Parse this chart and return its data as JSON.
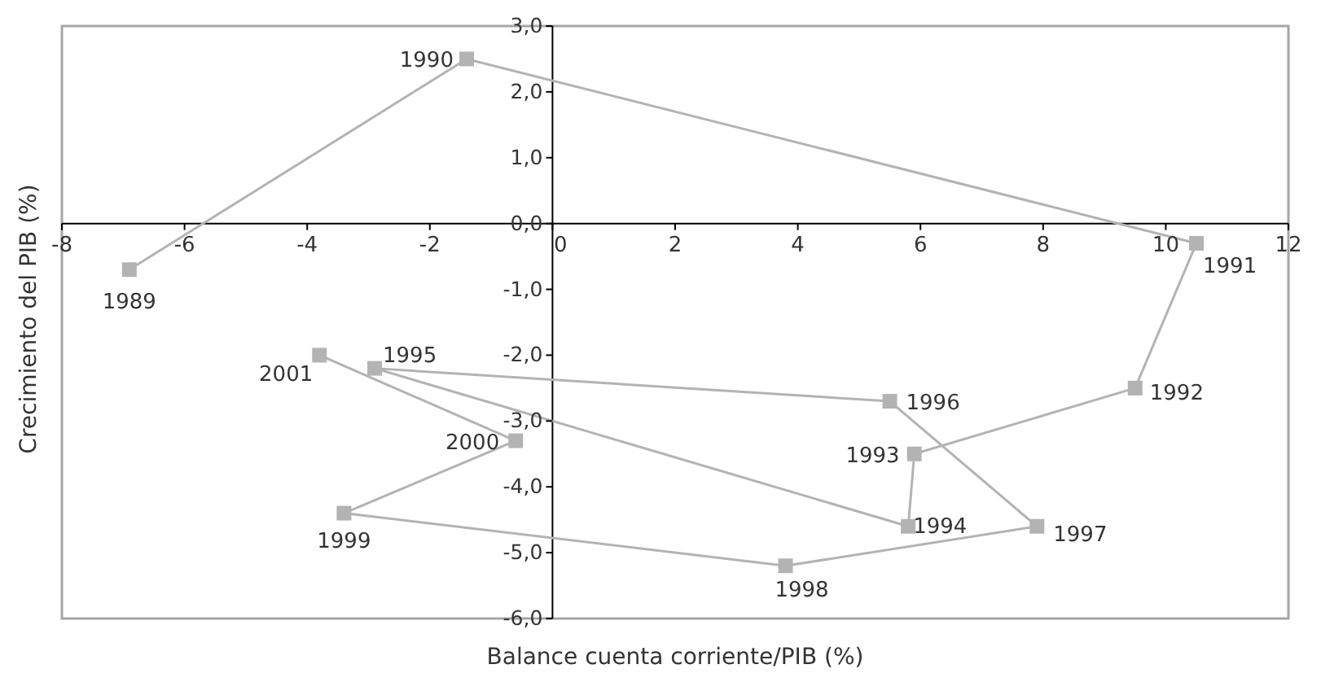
{
  "chart_data": {
    "type": "line",
    "xlabel": "Balance cuenta corriente/PIB (%)",
    "ylabel": "Crecimiento del PIB (%)",
    "series": [
      {
        "color": "#b3b3b3",
        "marker": "square",
        "x": [
          -6.9,
          -1.4,
          10.5,
          9.5,
          5.9,
          5.8,
          -2.9,
          5.5,
          7.9,
          3.8,
          -3.4,
          -0.6,
          -3.8
        ],
        "values": [
          -0.7,
          2.5,
          -0.3,
          -2.5,
          -3.5,
          -4.6,
          -2.2,
          -2.7,
          -4.6,
          -5.2,
          -4.4,
          -3.3,
          -2.0
        ]
      }
    ],
    "annotations": [
      {
        "text": "1989",
        "x": -6.9,
        "y": -0.7
      },
      {
        "text": "1990",
        "x": -1.4,
        "y": 2.5
      },
      {
        "text": "1991",
        "x": 10.5,
        "y": -0.3
      },
      {
        "text": "1992",
        "x": 9.5,
        "y": -2.5
      },
      {
        "text": "1993",
        "x": 5.9,
        "y": -3.5
      },
      {
        "text": "1994",
        "x": 5.8,
        "y": -4.6
      },
      {
        "text": "1995",
        "x": -2.9,
        "y": -2.2
      },
      {
        "text": "1996",
        "x": 5.5,
        "y": -2.7
      },
      {
        "text": "1997",
        "x": 7.9,
        "y": -4.6
      },
      {
        "text": "1998",
        "x": 3.8,
        "y": -5.2
      },
      {
        "text": "1999",
        "x": -3.4,
        "y": -4.4
      },
      {
        "text": "2000",
        "x": -0.6,
        "y": -3.3
      },
      {
        "text": "2001",
        "x": -3.8,
        "y": -2.0
      }
    ],
    "xlim": [
      -8,
      12
    ],
    "xticks": [
      -8,
      -6,
      -4,
      -2,
      0,
      2,
      4,
      6,
      8,
      10,
      12
    ],
    "ylim": [
      -6,
      3
    ],
    "yticks": [
      {
        "value": 3,
        "label": "3,0"
      },
      {
        "value": 2,
        "label": "2,0"
      },
      {
        "value": 1,
        "label": "1,0"
      },
      {
        "value": 0,
        "label": "0,0"
      },
      {
        "value": -1,
        "label": "-1,0"
      },
      {
        "value": -2,
        "label": "-2,0"
      },
      {
        "value": -3,
        "label": "-3,0"
      },
      {
        "value": -4,
        "label": "-4,0"
      },
      {
        "value": -5,
        "label": "-5,0"
      },
      {
        "value": -6,
        "label": "-6,0"
      }
    ]
  }
}
